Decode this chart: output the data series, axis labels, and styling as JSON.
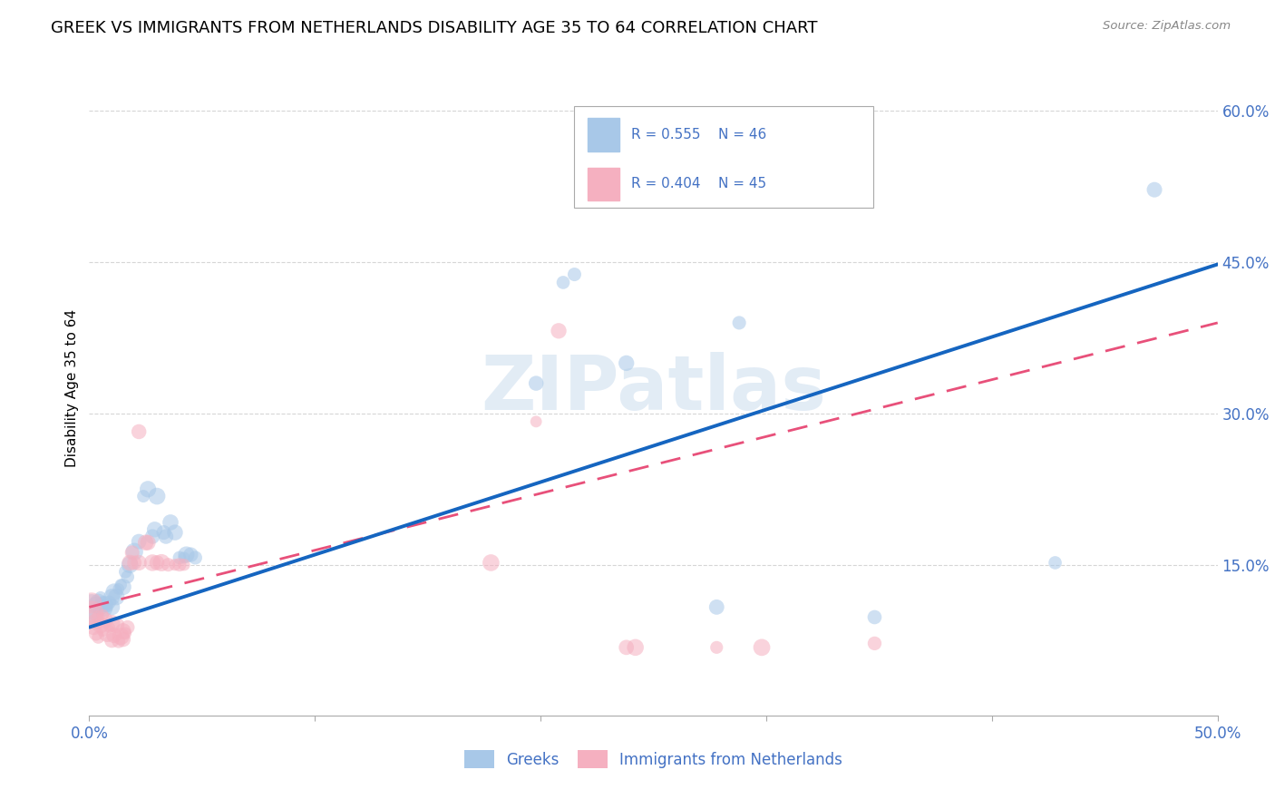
{
  "title": "GREEK VS IMMIGRANTS FROM NETHERLANDS DISABILITY AGE 35 TO 64 CORRELATION CHART",
  "source": "Source: ZipAtlas.com",
  "ylabel": "Disability Age 35 to 64",
  "xlim": [
    0.0,
    0.5
  ],
  "ylim": [
    0.0,
    0.65
  ],
  "xticks": [
    0.0,
    0.1,
    0.2,
    0.3,
    0.4,
    0.5
  ],
  "xticklabels": [
    "0.0%",
    "",
    "",
    "",
    "",
    "50.0%"
  ],
  "yticks": [
    0.15,
    0.3,
    0.45,
    0.6
  ],
  "yticklabels": [
    "15.0%",
    "30.0%",
    "45.0%",
    "60.0%"
  ],
  "legend_labels": [
    "Greeks",
    "Immigrants from Netherlands"
  ],
  "blue_R": "R = 0.555",
  "blue_N": "N = 46",
  "pink_R": "R = 0.404",
  "pink_N": "N = 45",
  "blue_color": "#a8c8e8",
  "pink_color": "#f5b0c0",
  "blue_line_color": "#1565c0",
  "pink_line_color": "#e8507a",
  "watermark": "ZIPatlas",
  "title_fontsize": 13,
  "label_color": "#4472c4",
  "blue_points": [
    [
      0.001,
      0.108
    ],
    [
      0.002,
      0.098
    ],
    [
      0.003,
      0.11
    ],
    [
      0.004,
      0.113
    ],
    [
      0.005,
      0.118
    ],
    [
      0.005,
      0.108
    ],
    [
      0.006,
      0.112
    ],
    [
      0.007,
      0.106
    ],
    [
      0.007,
      0.111
    ],
    [
      0.008,
      0.109
    ],
    [
      0.009,
      0.113
    ],
    [
      0.01,
      0.108
    ],
    [
      0.01,
      0.118
    ],
    [
      0.011,
      0.123
    ],
    [
      0.012,
      0.118
    ],
    [
      0.013,
      0.126
    ],
    [
      0.014,
      0.13
    ],
    [
      0.015,
      0.128
    ],
    [
      0.016,
      0.143
    ],
    [
      0.017,
      0.138
    ],
    [
      0.018,
      0.15
    ],
    [
      0.02,
      0.163
    ],
    [
      0.022,
      0.173
    ],
    [
      0.024,
      0.218
    ],
    [
      0.026,
      0.225
    ],
    [
      0.028,
      0.178
    ],
    [
      0.029,
      0.185
    ],
    [
      0.03,
      0.218
    ],
    [
      0.033,
      0.182
    ],
    [
      0.034,
      0.178
    ],
    [
      0.036,
      0.192
    ],
    [
      0.038,
      0.182
    ],
    [
      0.04,
      0.157
    ],
    [
      0.042,
      0.157
    ],
    [
      0.043,
      0.16
    ],
    [
      0.045,
      0.16
    ],
    [
      0.047,
      0.157
    ],
    [
      0.198,
      0.33
    ],
    [
      0.21,
      0.43
    ],
    [
      0.215,
      0.438
    ],
    [
      0.238,
      0.35
    ],
    [
      0.278,
      0.108
    ],
    [
      0.288,
      0.39
    ],
    [
      0.348,
      0.098
    ],
    [
      0.428,
      0.152
    ],
    [
      0.472,
      0.522
    ]
  ],
  "pink_points": [
    [
      0.001,
      0.102
    ],
    [
      0.001,
      0.112
    ],
    [
      0.002,
      0.088
    ],
    [
      0.003,
      0.094
    ],
    [
      0.003,
      0.082
    ],
    [
      0.004,
      0.098
    ],
    [
      0.004,
      0.078
    ],
    [
      0.005,
      0.09
    ],
    [
      0.006,
      0.085
    ],
    [
      0.006,
      0.1
    ],
    [
      0.007,
      0.095
    ],
    [
      0.008,
      0.082
    ],
    [
      0.009,
      0.088
    ],
    [
      0.01,
      0.075
    ],
    [
      0.01,
      0.092
    ],
    [
      0.011,
      0.08
    ],
    [
      0.012,
      0.09
    ],
    [
      0.013,
      0.074
    ],
    [
      0.014,
      0.079
    ],
    [
      0.015,
      0.084
    ],
    [
      0.015,
      0.076
    ],
    [
      0.016,
      0.082
    ],
    [
      0.017,
      0.088
    ],
    [
      0.018,
      0.152
    ],
    [
      0.019,
      0.162
    ],
    [
      0.02,
      0.152
    ],
    [
      0.022,
      0.152
    ],
    [
      0.022,
      0.282
    ],
    [
      0.025,
      0.172
    ],
    [
      0.026,
      0.172
    ],
    [
      0.028,
      0.152
    ],
    [
      0.03,
      0.152
    ],
    [
      0.032,
      0.152
    ],
    [
      0.035,
      0.15
    ],
    [
      0.038,
      0.15
    ],
    [
      0.04,
      0.15
    ],
    [
      0.042,
      0.15
    ],
    [
      0.178,
      0.152
    ],
    [
      0.198,
      0.292
    ],
    [
      0.208,
      0.382
    ],
    [
      0.238,
      0.068
    ],
    [
      0.242,
      0.068
    ],
    [
      0.278,
      0.068
    ],
    [
      0.298,
      0.068
    ],
    [
      0.348,
      0.072
    ]
  ],
  "blue_line": [
    0.0,
    0.088,
    0.5,
    0.448
  ],
  "pink_line": [
    0.0,
    0.108,
    0.5,
    0.39
  ]
}
